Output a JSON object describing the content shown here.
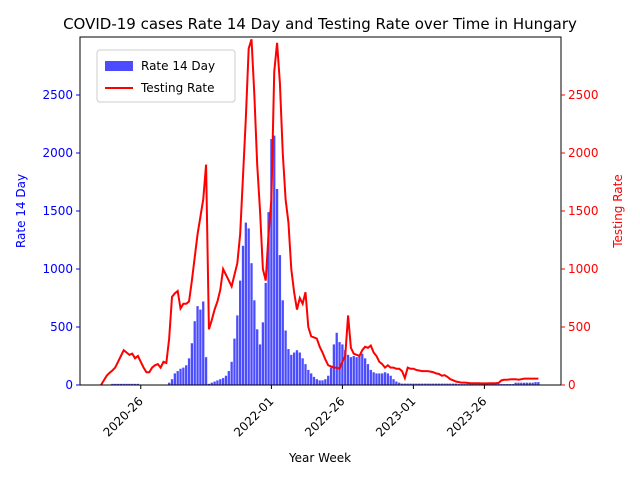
{
  "chart_data": {
    "type": "bar-line",
    "title": "COVID-19 cases Rate 14 Day and Testing Rate over Time in Hungary",
    "xlabel": "Year Week",
    "ylabel": "Rate 14 Day",
    "y2label": "Testing Rate",
    "categories": [
      null,
      null,
      null,
      null,
      null,
      null,
      null,
      null,
      null,
      null,
      null,
      null,
      null,
      null,
      "2020-26",
      null,
      null,
      null,
      null,
      null,
      null,
      null,
      null,
      null,
      null,
      null,
      null,
      null,
      null,
      null,
      null,
      null,
      null,
      null,
      null,
      null,
      null,
      null,
      null,
      null,
      null,
      null,
      null,
      null,
      null,
      null,
      null,
      null,
      null,
      null,
      null,
      null,
      null,
      null,
      null,
      null,
      null,
      null,
      null,
      null,
      "2022-01",
      null,
      null,
      null,
      null,
      null,
      null,
      null,
      null,
      null,
      null,
      null,
      null,
      null,
      null,
      null,
      null,
      null,
      null,
      null,
      null,
      null,
      null,
      null,
      null,
      "2022-26",
      null,
      null,
      null,
      null,
      null,
      null,
      null,
      null,
      null,
      null,
      null,
      null,
      null,
      null,
      null,
      null,
      null,
      null,
      null,
      null,
      null,
      null,
      null,
      null,
      "2023-01",
      null,
      null,
      null,
      null,
      null,
      null,
      null,
      null,
      null,
      null,
      null,
      null,
      null,
      null,
      null,
      null,
      null,
      null,
      null,
      null,
      null,
      null,
      null,
      null,
      "2023-26",
      null,
      null,
      null,
      null,
      null,
      null,
      null,
      null,
      null,
      null,
      null,
      null,
      null,
      null,
      null,
      null,
      null,
      null,
      null
    ],
    "series": [
      {
        "name": "Rate 14 Day",
        "color": "#0000ff",
        "kind": "bar",
        "values": [
          0,
          0,
          0,
          0,
          10,
          10,
          10,
          10,
          10,
          10,
          10,
          10,
          10,
          10,
          0,
          0,
          0,
          0,
          0,
          0,
          0,
          0,
          0,
          0,
          20,
          50,
          100,
          120,
          140,
          150,
          170,
          230,
          360,
          550,
          680,
          650,
          720,
          240,
          10,
          20,
          30,
          40,
          50,
          60,
          80,
          120,
          200,
          400,
          600,
          900,
          1200,
          1400,
          1350,
          1050,
          730,
          480,
          350,
          540,
          880,
          1490,
          2120,
          2150,
          1690,
          1120,
          730,
          470,
          310,
          260,
          280,
          300,
          280,
          230,
          180,
          130,
          100,
          70,
          50,
          40,
          40,
          50,
          80,
          150,
          350,
          450,
          370,
          350,
          300,
          260,
          240,
          250,
          240,
          260,
          270,
          230,
          180,
          130,
          110,
          100,
          100,
          100,
          110,
          100,
          80,
          50,
          30,
          20,
          12,
          12,
          12,
          12,
          12,
          12,
          12,
          12,
          12,
          12,
          12,
          12,
          12,
          12,
          12,
          12,
          12,
          12,
          12,
          12,
          8,
          8,
          8,
          8,
          8,
          8,
          8,
          8,
          8,
          8,
          8,
          8,
          8,
          8,
          8,
          8,
          8,
          8,
          8,
          8,
          20,
          20,
          20,
          20,
          20,
          20,
          20,
          25,
          25
        ]
      },
      {
        "name": "Testing Rate",
        "color": "#ff0000",
        "kind": "line",
        "axis": "y2",
        "values": [
          0,
          40,
          80,
          105,
          125,
          150,
          200,
          250,
          300,
          280,
          260,
          270,
          230,
          250,
          200,
          150,
          110,
          110,
          150,
          170,
          180,
          150,
          200,
          190,
          400,
          760,
          790,
          810,
          660,
          700,
          700,
          720,
          900,
          1100,
          1300,
          1450,
          1600,
          1900,
          480,
          560,
          650,
          720,
          820,
          1000,
          950,
          900,
          850,
          950,
          1050,
          1300,
          1800,
          2300,
          2900,
          2980,
          2500,
          1900,
          1500,
          1000,
          900,
          1300,
          1600,
          2700,
          2950,
          2600,
          2000,
          1600,
          1400,
          1000,
          800,
          650,
          750,
          700,
          800,
          500,
          420,
          410,
          400,
          330,
          280,
          220,
          170,
          160,
          150,
          150,
          140,
          200,
          250,
          600,
          320,
          270,
          260,
          250,
          300,
          330,
          320,
          340,
          280,
          250,
          200,
          180,
          150,
          170,
          150,
          150,
          140,
          140,
          120,
          60,
          150,
          140,
          140,
          130,
          125,
          120,
          120,
          120,
          115,
          110,
          100,
          95,
          80,
          85,
          70,
          50,
          40,
          30,
          25,
          20,
          20,
          18,
          15,
          15,
          15,
          15,
          14,
          14,
          14,
          15,
          15,
          15,
          18,
          40,
          45,
          45,
          48,
          50,
          50,
          45,
          50,
          55,
          55,
          55,
          55,
          55,
          55
        ]
      }
    ],
    "ylim": [
      0,
      3000
    ],
    "yticks": [
      0,
      500,
      1000,
      1500,
      2000,
      2500
    ],
    "y2lim": [
      0,
      3000
    ],
    "y2ticks": [
      0,
      500,
      1000,
      1500,
      2000,
      2500
    ],
    "legend": "upper left"
  }
}
